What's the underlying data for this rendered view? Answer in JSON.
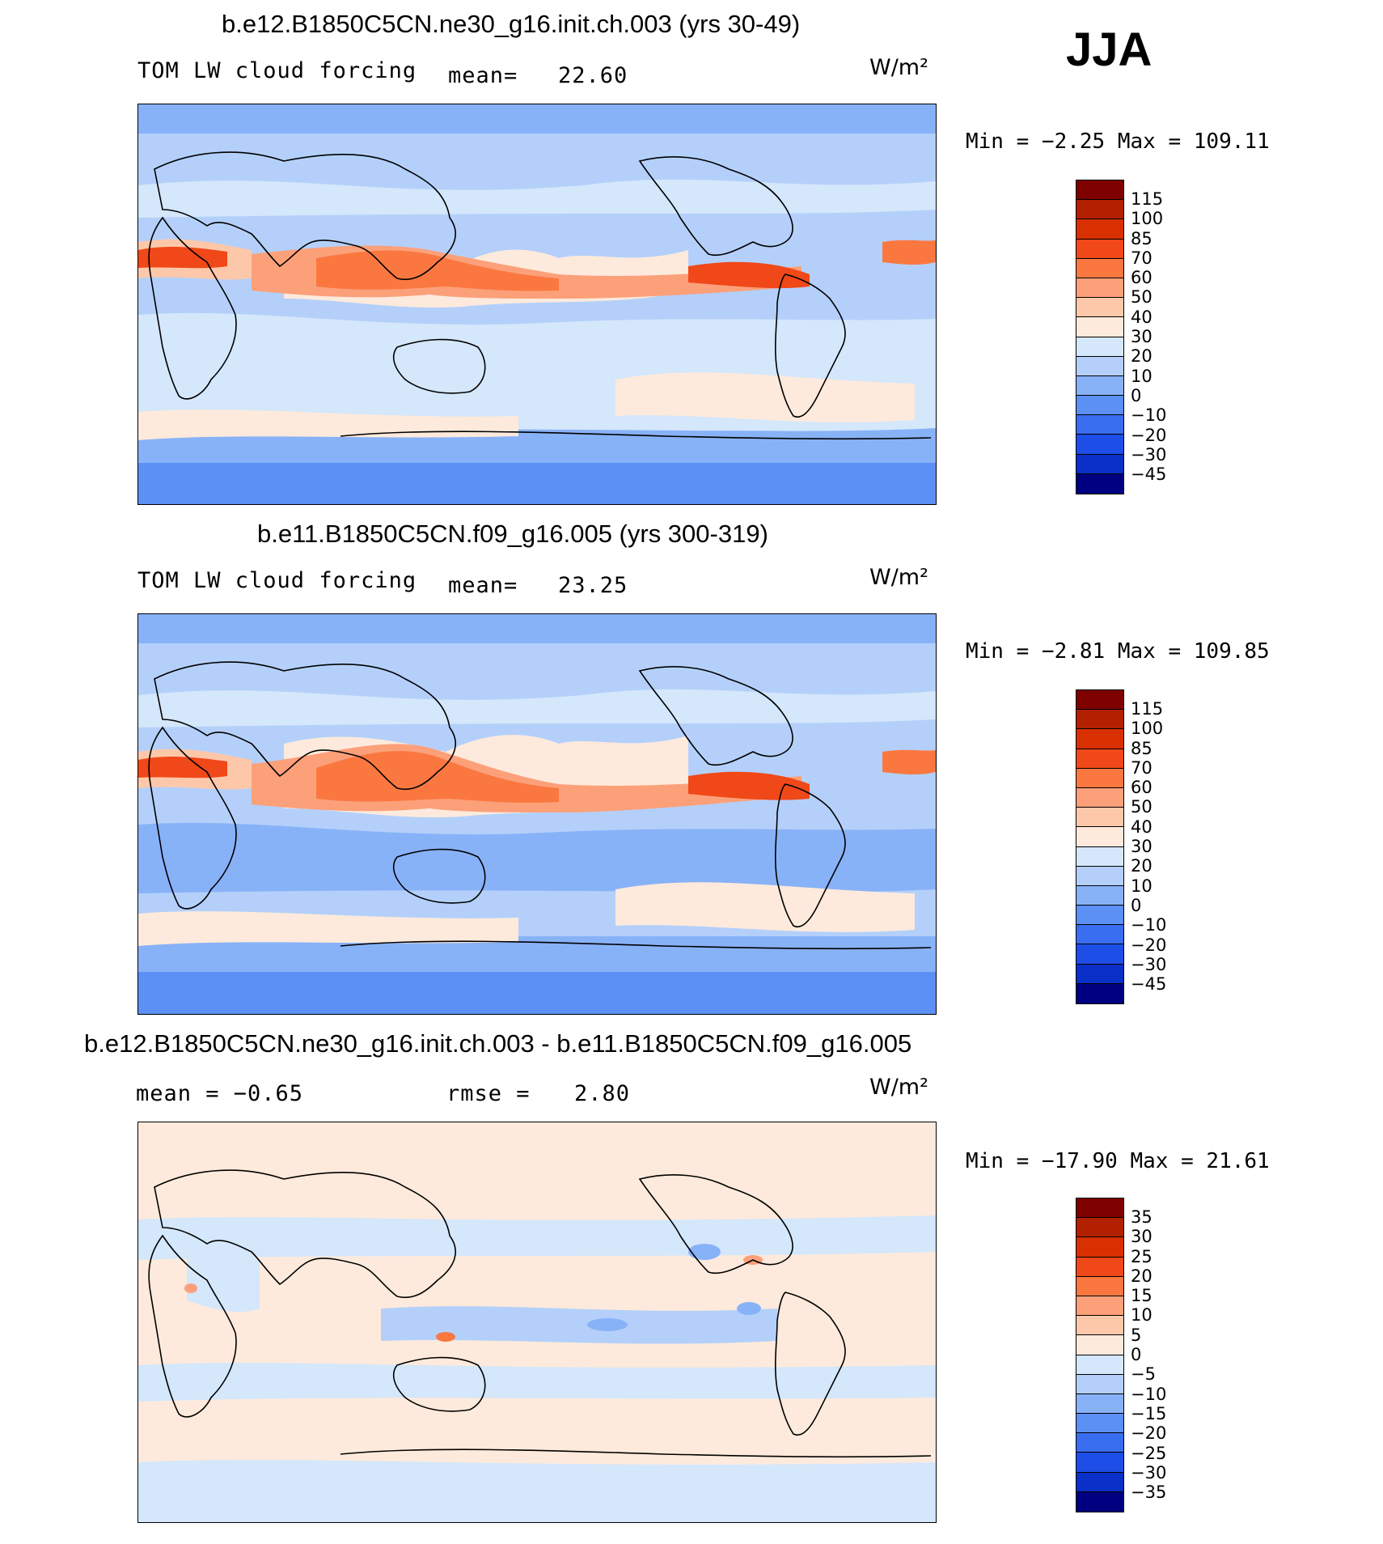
{
  "season_label": "JJA",
  "panels": [
    {
      "title": "b.e12.B1850C5CN.ne30_g16.init.ch.003 (yrs 30-49)",
      "left_label": "TOM LW cloud forcing",
      "mean_text": "mean=",
      "mean_value": "22.60",
      "units": "W/m²",
      "min_max": "Min =   −2.25 Max =  109.11"
    },
    {
      "title": "b.e11.B1850C5CN.f09_g16.005 (yrs 300-319)",
      "left_label": "TOM LW cloud forcing",
      "mean_text": "mean=",
      "mean_value": "23.25",
      "units": "W/m²",
      "min_max": "Min =   −2.81 Max =  109.85"
    },
    {
      "title": "b.e12.B1850C5CN.ne30_g16.init.ch.003 - b.e11.B1850C5CN.f09_g16.005",
      "left_label": "mean =   −0.65",
      "mean_text": "rmse =",
      "mean_value": "2.80",
      "units": "W/m²",
      "min_max": "Min = −17.90 Max =   21.61"
    }
  ],
  "colorbars": {
    "abs_levels": [
      "115",
      "100",
      "85",
      "70",
      "60",
      "50",
      "40",
      "30",
      "20",
      "10",
      "0",
      "−10",
      "−20",
      "−30",
      "−45"
    ],
    "abs_colors": [
      "#7f0000",
      "#b22000",
      "#d83000",
      "#f04818",
      "#fa7840",
      "#fca07a",
      "#fdc8aa",
      "#fdeadc",
      "#d4e7fb",
      "#b4d0fa",
      "#88b2f8",
      "#5c90f4",
      "#3a6ef0",
      "#1d4ee8",
      "#0a30c8",
      "#000080"
    ],
    "diff_levels": [
      "35",
      "30",
      "25",
      "20",
      "15",
      "10",
      "5",
      "0",
      "−5",
      "−10",
      "−15",
      "−20",
      "−25",
      "−30",
      "−35"
    ],
    "diff_colors": [
      "#7f0000",
      "#b22000",
      "#d83000",
      "#f04818",
      "#fa7840",
      "#fca07a",
      "#fdc8aa",
      "#fdeadc",
      "#d4e7fb",
      "#b4d0fa",
      "#88b2f8",
      "#5c90f4",
      "#3a6ef0",
      "#1d4ee8",
      "#0a30c8",
      "#000080"
    ]
  }
}
